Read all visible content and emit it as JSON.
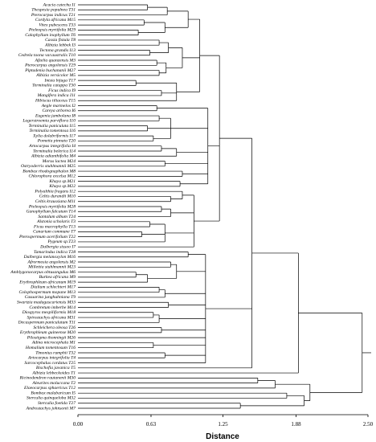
{
  "chart_data": {
    "type": "dendrogram",
    "xlabel": "Distance",
    "xlim": [
      0,
      2.5
    ],
    "xticks": [
      {
        "value": 0,
        "label": "0.00"
      },
      0.63,
      1.25,
      1.88,
      {
        "value": 2.5,
        "label": "2.50"
      }
    ],
    "tree": {
      "height": 2.45,
      "children": [
        {
          "height": 1.9,
          "children": [
            {
              "height": 1.5,
              "children": [
                {
                  "height": 1.22,
                  "children": [
                    {
                      "height": 1.05,
                      "children": [
                        {
                          "height": 0.95,
                          "children": [
                            {
                              "height": 0.77,
                              "children": [
                                {
                                  "height": 0.6,
                                  "children": [
                                    "Acacia catechu I1",
                                    "Thespesia populnea T31"
                                  ]
                                },
                                "Pterocarpus indicus T21"
                              ]
                            },
                            {
                              "height": 0.75,
                              "children": [
                                {
                                  "height": 0.57,
                                  "children": [
                                    "Cordyla africana M15",
                                    "Vitex pubescens T33"
                                  ]
                                },
                                {
                                  "height": 0.52,
                                  "children": [
                                    "Pteleopsis myrtifolia M29",
                                    "Calophyllum inophyllum T6"
                                  ]
                                }
                              ]
                            }
                          ]
                        },
                        {
                          "height": 0.9,
                          "children": [
                            {
                              "height": 0.78,
                              "children": [
                                {
                                  "height": 0.7,
                                  "children": [
                                    "Cassia fistula T8",
                                    "Albizia lebbek I3"
                                  ]
                                },
                                {
                                  "height": 0.62,
                                  "children": [
                                    "Tectona grandis I13",
                                    "Cedrela toona var.australis T10"
                                  ]
                                }
                              ]
                            },
                            {
                              "height": 0.76,
                              "children": [
                                {
                                  "height": 0.68,
                                  "children": [
                                    "Afzelia quanzensis M3",
                                    "Pterocarpus angolensis T29"
                                  ]
                                },
                                {
                                  "height": 0.7,
                                  "children": [
                                    "Piptadenia buchananii M27",
                                    "Albizia versicolor M5"
                                  ]
                                }
                              ]
                            }
                          ]
                        },
                        {
                          "height": 0.85,
                          "children": [
                            {
                              "height": 0.5,
                              "children": [
                                "Intsia bijuga T17",
                                "Terminalia catappa T30"
                              ]
                            },
                            {
                              "height": 0.72,
                              "children": [
                                "Ficus indica I9",
                                "Mangifera indica I11"
                              ]
                            },
                            "Hibiscus tiliaceus T15"
                          ]
                        }
                      ]
                    },
                    {
                      "height": 1.12,
                      "children": [
                        {
                          "height": 0.68,
                          "children": [
                            "Aegle marmelos I2",
                            "Careya arborea I6"
                          ]
                        },
                        {
                          "height": 0.8,
                          "children": [
                            {
                              "height": 0.7,
                              "children": [
                                "Eugenia jambolana I8",
                                "Lagerstroemia parviflora I10"
                              ]
                            },
                            {
                              "height": 0.6,
                              "children": [
                                "Terminalia paniculata I15",
                                "Terminalia tomentosa I16"
                              ]
                            },
                            {
                              "height": 0.65,
                              "children": [
                                "Xylia dolabriformis I17",
                                "Pometia pinnata T20"
                              ]
                            }
                          ]
                        },
                        {
                          "height": 0.85,
                          "children": [
                            {
                              "height": 0.72,
                              "children": [
                                "Artocarpus integrifolia I4",
                                "Terminalia belerica I14"
                              ]
                            },
                            "Albizia adianthifolia M4"
                          ]
                        },
                        {
                          "height": 0.75,
                          "children": [
                            "Morus lactea M24",
                            "Ostryoderris stuhlmannii M25"
                          ]
                        },
                        {
                          "height": 0.9,
                          "children": [
                            "Bombax rhodognaphalon M8",
                            "Chlorophora excelsa M12"
                          ]
                        },
                        {
                          "height": 0.88,
                          "children": [
                            "Khaya sp.M21",
                            "Khaya sp.M22"
                          ]
                        }
                      ]
                    },
                    {
                      "height": 1.0,
                      "children": [
                        {
                          "height": 0.9,
                          "children": [
                            "Polyalthia fragans I12",
                            {
                              "height": 0.8,
                              "children": [
                                "Celtis durandii M10",
                                "Celtis kraussiana M11"
                              ]
                            }
                          ]
                        },
                        {
                          "height": 0.8,
                          "children": [
                            {
                              "height": 0.72,
                              "children": [
                                "Pteleopsis myrtifolia M28",
                                "Ganophyllum falcatum T14"
                              ]
                            },
                            "Santalum album T24"
                          ]
                        },
                        {
                          "height": 0.75,
                          "children": [
                            {
                              "height": 0.62,
                              "children": [
                                "Alstonia scholaris T3",
                                "Ficus macrophylla T13"
                              ]
                            },
                            {
                              "height": 0.55,
                              "children": [
                                "Canarium commune T7",
                                "Pterospermum acerifolium T22"
                              ]
                            },
                            "Pygeum sp.T23"
                          ]
                        },
                        "Dalbergia sissoo I7"
                      ]
                    }
                  ]
                },
                {
                  "height": 1.1,
                  "children": [
                    {
                      "height": 0.95,
                      "children": [
                        "Tamarindus indica T28",
                        "Dalbergia melanoxylon M16"
                      ]
                    },
                    {
                      "height": 0.85,
                      "children": [
                        {
                          "height": 0.8,
                          "children": [
                            "Afrormosia angolensis M2",
                            "Millettia stuhlmannii M23"
                          ]
                        },
                        {
                          "height": 0.6,
                          "children": [
                            {
                              "height": 0.5,
                              "children": [
                                "Amblygonocarpus obtusangulus M6",
                                "Burkea africana M9"
                              ]
                            },
                            "Erythrophleum africanum M19"
                          ]
                        }
                      ]
                    },
                    {
                      "height": 0.75,
                      "children": [
                        {
                          "height": 0.7,
                          "children": [
                            "Dialium schlechteri M17",
                            "Colophospermum mopane M13"
                          ]
                        },
                        "Casuarina junghuhniana T9"
                      ]
                    },
                    {
                      "height": 0.78,
                      "children": [
                        "Swartzia madagascariensis M33",
                        "Combretum imberbe M14"
                      ]
                    },
                    {
                      "height": 0.7,
                      "children": [
                        {
                          "height": 0.65,
                          "children": [
                            "Diospyros mespiliformis M18",
                            "Spirostachys africana M31"
                          ]
                        },
                        "Decaspermum paniculatum T11"
                      ]
                    },
                    {
                      "height": 0.72,
                      "children": [
                        "Schleichera oleosa T26",
                        "Erythrophleum guineense M20"
                      ]
                    },
                    "Pilostigma thonningii M26",
                    {
                      "height": 0.65,
                      "children": [
                        "Adina microcephala M1",
                        "Homalium tomentosum T16"
                      ]
                    },
                    {
                      "height": 0.75,
                      "children": [
                        "Timonius rumphii T32",
                        "Artocarpus integrifolia T4"
                      ]
                    },
                    "Sarcocephalus cordatus T25"
                  ]
                },
                "Bischofia javanica T5"
              ]
            },
            "Albizia lebbeckoides T1"
          ]
        },
        {
          "height": 2.0,
          "children": [
            {
              "height": 1.7,
              "children": [
                {
                  "height": 1.55,
                  "children": [
                    "Ricinodendron rautanenii M30",
                    "Aleurites moluccana T2"
                  ]
                },
                "Elaeocarpus sphaericus T12"
              ]
            },
            {
              "height": 1.95,
              "children": [
                {
                  "height": 1.8,
                  "children": [
                    "Bombax malabaricum I5",
                    "Sterculia quinqueloba M32"
                  ]
                },
                {
                  "height": 1.4,
                  "children": [
                    "Sterculia foetida T27",
                    "Androstachys johnsonii M7"
                  ]
                }
              ]
            }
          ]
        }
      ]
    }
  }
}
